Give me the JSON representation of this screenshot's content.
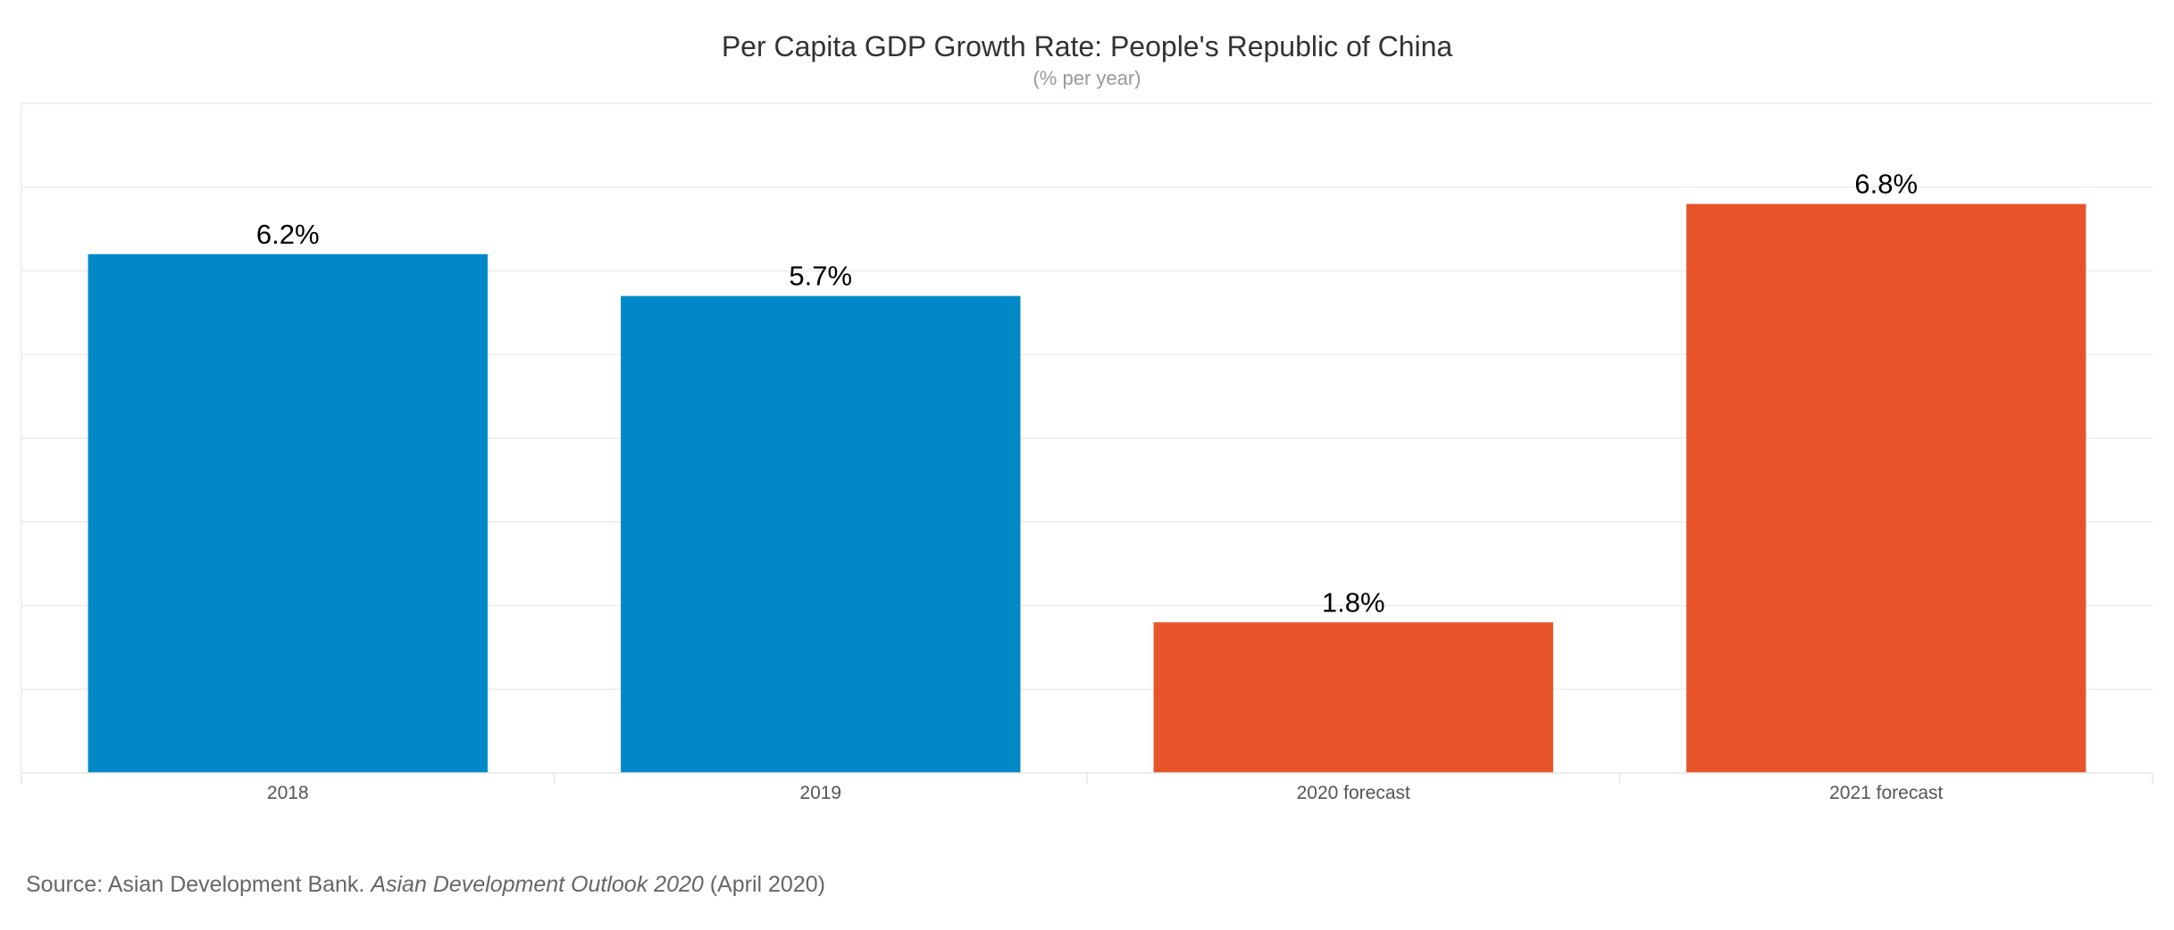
{
  "chart_data": {
    "type": "bar",
    "title": "Per Capita GDP Growth Rate: People's Republic of China",
    "subtitle": "(% per year)",
    "categories": [
      "2018",
      "2019",
      "2020 forecast",
      "2021 forecast"
    ],
    "values": [
      6.2,
      5.7,
      1.8,
      6.8
    ],
    "data_labels": [
      "6.2%",
      "5.7%",
      "1.8%",
      "6.8%"
    ],
    "bar_colors": [
      "#0088c7",
      "#0088c7",
      "#e8542a",
      "#e8542a"
    ],
    "ylim": [
      0,
      8
    ],
    "grid": true,
    "xlabel": "",
    "ylabel": ""
  },
  "source": {
    "prefix": "Source: Asian Development Bank. ",
    "publication": "Asian Development Outlook 2020",
    "suffix": " (April 2020)"
  }
}
